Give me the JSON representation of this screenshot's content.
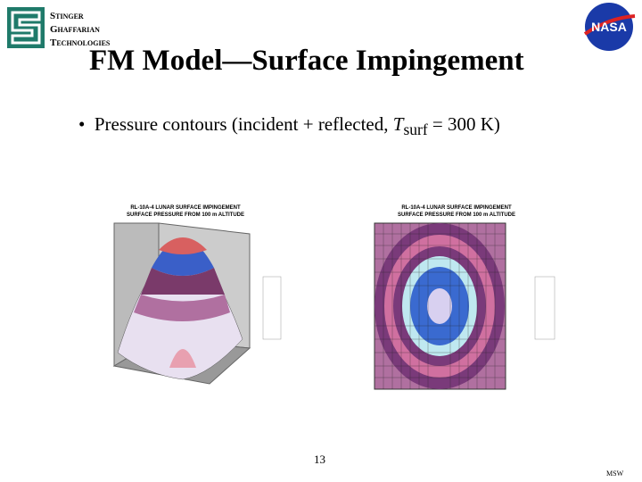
{
  "logo": {
    "lines": [
      "Stinger",
      "Ghaffarian",
      "Technologies"
    ]
  },
  "nasa_logo": "NASA",
  "title": "FM Model—Surface Impingement",
  "bullet": {
    "text_before": "Pressure contours (incident + reflected, ",
    "variable": "T",
    "subscript": "surf",
    "text_after": " = 300 K)"
  },
  "figures": [
    {
      "title_lines": [
        "RL-10A-4 LUNAR SURFACE IMPINGEMENT",
        "SURFACE PRESSURE FROM 100 m ALTITUDE"
      ]
    },
    {
      "title_lines": [
        "RL-10A-4 LUNAR SURFACE IMPINGEMENT",
        "SURFACE PRESSURE FROM 100 m ALTITUDE"
      ]
    }
  ],
  "page_number": "13",
  "footer": "MSW"
}
